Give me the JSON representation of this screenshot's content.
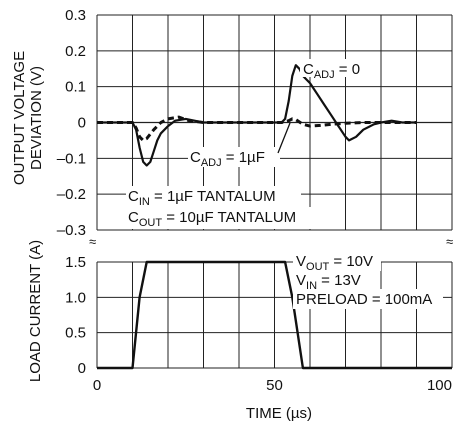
{
  "chart_data": [
    {
      "type": "line",
      "panel": "top",
      "ylabel_lines": [
        "OUTPUT VOLTAGE",
        "DEVIATION (V)"
      ],
      "ylim": [
        -0.3,
        0.3
      ],
      "yticks": [
        "0.3",
        "0.2",
        "0.1",
        "0",
        "–0.1",
        "–0.2",
        "–0.3"
      ],
      "yticks_values": [
        0.3,
        0.2,
        0.1,
        0,
        -0.1,
        -0.2,
        -0.3
      ],
      "xlim": [
        0,
        100
      ],
      "grid": true,
      "series": [
        {
          "name": "CADJ = 0",
          "style": "solid",
          "x": [
            0,
            10,
            11,
            12,
            13,
            14,
            15,
            16,
            17,
            18,
            20,
            22,
            25,
            28,
            30,
            52,
            53,
            54,
            55,
            56,
            57,
            58,
            60,
            62,
            64,
            66,
            68,
            70,
            71,
            73,
            75,
            78,
            80,
            83,
            86,
            90
          ],
          "y": [
            0,
            0,
            -0.02,
            -0.07,
            -0.11,
            -0.12,
            -0.11,
            -0.08,
            -0.05,
            -0.03,
            -0.01,
            0.005,
            0.01,
            0.004,
            0,
            0,
            0.01,
            0.06,
            0.13,
            0.16,
            0.15,
            0.13,
            0.11,
            0.08,
            0.05,
            0.02,
            -0.01,
            -0.04,
            -0.05,
            -0.04,
            -0.02,
            -0.005,
            0,
            0.005,
            0,
            0
          ]
        },
        {
          "name": "CADJ = 1µF",
          "style": "dashed",
          "x": [
            0,
            10,
            11,
            12,
            13,
            14,
            16,
            18,
            20,
            23,
            26,
            30,
            52,
            54,
            55,
            56,
            58,
            60,
            63,
            66,
            70,
            75,
            80,
            86,
            90
          ],
          "y": [
            0,
            0,
            -0.015,
            -0.04,
            -0.05,
            -0.045,
            -0.02,
            0,
            0.01,
            0.015,
            0.005,
            0,
            0,
            0.005,
            0.01,
            0.008,
            -0.005,
            -0.01,
            -0.008,
            -0.005,
            -0.002,
            0,
            0,
            0,
            0
          ]
        }
      ],
      "annotations": [
        {
          "text": "C",
          "sub": "ADJ",
          "rest": " = 0"
        },
        {
          "text": "C",
          "sub": "ADJ",
          "rest": " = 1µF"
        },
        {
          "text": "C",
          "sub": "IN",
          "rest": " = 1µF TANTALUM"
        },
        {
          "text": "C",
          "sub": "OUT",
          "rest": " = 10µF TANTALUM"
        }
      ]
    },
    {
      "type": "line",
      "panel": "bottom",
      "ylabel": "LOAD CURRENT (A)",
      "xlabel": "TIME (µs)",
      "ylim": [
        0,
        1.5
      ],
      "yticks": [
        "1.5",
        "1.0",
        "0.5",
        "0"
      ],
      "yticks_values": [
        1.5,
        1.0,
        0.5,
        0
      ],
      "xlim": [
        0,
        100
      ],
      "xticks": [
        "0",
        "50",
        "100"
      ],
      "xticks_values": [
        0,
        50,
        100
      ],
      "grid": true,
      "series": [
        {
          "x": [
            0,
            10,
            12,
            14,
            53,
            55,
            58,
            100
          ],
          "y": [
            0,
            0,
            1.0,
            1.5,
            1.5,
            1.0,
            0,
            0
          ]
        }
      ],
      "annotations": [
        {
          "text": "V",
          "sub": "OUT",
          "rest": " = 10V"
        },
        {
          "text": "V",
          "sub": "IN",
          "rest": " = 13V"
        },
        {
          "text": "PRELOAD = 100mA",
          "sub": "",
          "rest": ""
        }
      ]
    }
  ]
}
